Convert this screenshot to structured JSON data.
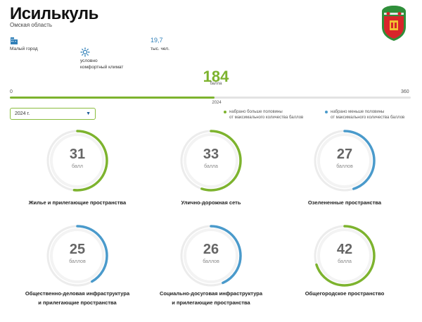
{
  "header": {
    "city": "Исилькуль",
    "region": "Омская область"
  },
  "stats": [
    {
      "icon": "buildings-icon",
      "value": "",
      "label": "Малый город"
    },
    {
      "icon": "climate-icon",
      "value": "",
      "label": "условно\nкомфортный климат"
    },
    {
      "icon": "",
      "value": "19,7",
      "label": "тыс. чел."
    }
  ],
  "score": {
    "value": 184,
    "unit": "балла",
    "min": 0,
    "max": 360,
    "min_label": "0",
    "max_label": "360",
    "year_mark": "2024"
  },
  "year_select": {
    "selected": "2024 г."
  },
  "legend": {
    "above": "набрано больше половины\nот максимального количества баллов",
    "below": "набрано меньше половины\nот максимального количества баллов"
  },
  "colors": {
    "above": "#7db32e",
    "below": "#4a9acb",
    "track": "#ececec"
  },
  "categories": [
    {
      "name": "Жилье и прилегающие пространства",
      "value": 31,
      "unit": "балл",
      "max": 60,
      "status": "above"
    },
    {
      "name": "Улично-дорожная сеть",
      "value": 33,
      "unit": "балла",
      "max": 60,
      "status": "above"
    },
    {
      "name": "Озелененные пространства",
      "value": 27,
      "unit": "баллов",
      "max": 60,
      "status": "below"
    },
    {
      "name": "Общественно-деловая инфраструктура\nи прилегающие пространства",
      "value": 25,
      "unit": "баллов",
      "max": 60,
      "status": "below"
    },
    {
      "name": "Социально-досуговая инфраструктура\nи прилегающие пространства",
      "value": 26,
      "unit": "баллов",
      "max": 60,
      "status": "below"
    },
    {
      "name": "Общегородское пространство",
      "value": 42,
      "unit": "балла",
      "max": 60,
      "status": "above"
    }
  ]
}
